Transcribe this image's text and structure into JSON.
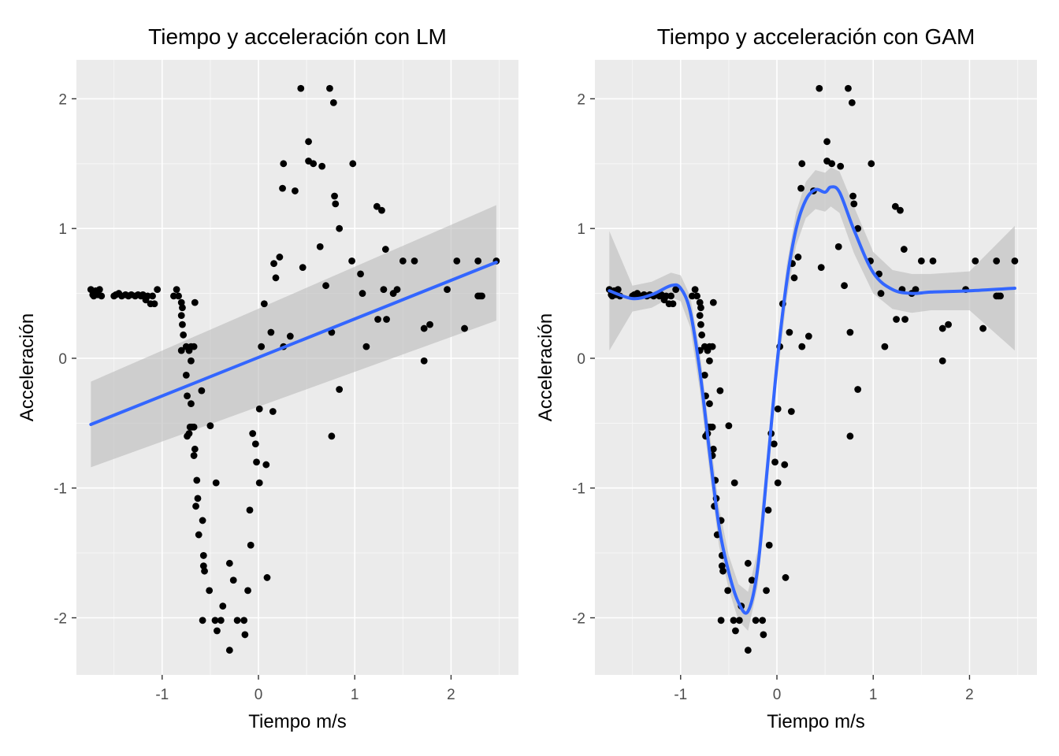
{
  "chart_data": [
    {
      "type": "scatter",
      "title": "Tiempo y acceleración con LM",
      "xlabel": "Tiempo m/s",
      "ylabel": "Acceleración",
      "xlim": [
        -1.89,
        2.7
      ],
      "ylim": [
        -2.44,
        2.3
      ],
      "xticks": [
        -1,
        0,
        1,
        2
      ],
      "yticks": [
        -2,
        -1,
        0,
        1,
        2
      ],
      "tick_labels_x": [
        "-1",
        "0",
        "1",
        "2"
      ],
      "tick_labels_y": [
        "-2",
        "-1",
        "0",
        "1",
        "2"
      ],
      "grid": true,
      "points": [
        {
          "x": -1.74,
          "y": 0.53
        },
        {
          "x": -1.72,
          "y": 0.49
        },
        {
          "x": -1.71,
          "y": 0.48
        },
        {
          "x": -1.69,
          "y": 0.52
        },
        {
          "x": -1.67,
          "y": 0.49
        },
        {
          "x": -1.65,
          "y": 0.53
        },
        {
          "x": -1.63,
          "y": 0.48
        },
        {
          "x": -1.5,
          "y": 0.48
        },
        {
          "x": -1.48,
          "y": 0.49
        },
        {
          "x": -1.45,
          "y": 0.5
        },
        {
          "x": -1.42,
          "y": 0.48
        },
        {
          "x": -1.38,
          "y": 0.49
        },
        {
          "x": -1.35,
          "y": 0.48
        },
        {
          "x": -1.32,
          "y": 0.49
        },
        {
          "x": -1.28,
          "y": 0.48
        },
        {
          "x": -1.25,
          "y": 0.49
        },
        {
          "x": -1.22,
          "y": 0.48
        },
        {
          "x": -1.2,
          "y": 0.49
        },
        {
          "x": -1.17,
          "y": 0.45
        },
        {
          "x": -1.15,
          "y": 0.48
        },
        {
          "x": -1.12,
          "y": 0.42
        },
        {
          "x": -1.1,
          "y": 0.48
        },
        {
          "x": -1.08,
          "y": 0.42
        },
        {
          "x": -1.05,
          "y": 0.53
        },
        {
          "x": -0.88,
          "y": 0.48
        },
        {
          "x": -0.85,
          "y": 0.53
        },
        {
          "x": -0.83,
          "y": 0.48
        },
        {
          "x": -0.8,
          "y": 0.43
        },
        {
          "x": -0.79,
          "y": 0.39
        },
        {
          "x": -0.8,
          "y": 0.33
        },
        {
          "x": -0.79,
          "y": 0.26
        },
        {
          "x": -0.78,
          "y": 0.18
        },
        {
          "x": -0.8,
          "y": 0.06
        },
        {
          "x": -0.75,
          "y": 0.09
        },
        {
          "x": -0.72,
          "y": 0.06
        },
        {
          "x": -0.7,
          "y": 0.09
        },
        {
          "x": -0.67,
          "y": 0.09
        },
        {
          "x": -0.66,
          "y": 0.43
        },
        {
          "x": -0.75,
          "y": -0.13
        },
        {
          "x": -0.7,
          "y": -0.02
        },
        {
          "x": -0.74,
          "y": -0.29
        },
        {
          "x": -0.7,
          "y": -0.35
        },
        {
          "x": -0.59,
          "y": -0.25
        },
        {
          "x": -0.72,
          "y": -0.58
        },
        {
          "x": -0.71,
          "y": -0.53
        },
        {
          "x": -0.74,
          "y": -0.6
        },
        {
          "x": -0.69,
          "y": -0.53
        },
        {
          "x": -0.67,
          "y": -0.53
        },
        {
          "x": -0.66,
          "y": -0.7
        },
        {
          "x": -0.67,
          "y": -0.75
        },
        {
          "x": -0.64,
          "y": -0.94
        },
        {
          "x": -0.63,
          "y": -1.08
        },
        {
          "x": -0.65,
          "y": -1.14
        },
        {
          "x": -0.62,
          "y": -1.36
        },
        {
          "x": -0.58,
          "y": -1.25
        },
        {
          "x": -0.57,
          "y": -1.52
        },
        {
          "x": -0.57,
          "y": -1.6
        },
        {
          "x": -0.56,
          "y": -1.64
        },
        {
          "x": -0.5,
          "y": -0.52
        },
        {
          "x": -0.51,
          "y": -1.79
        },
        {
          "x": -0.58,
          "y": -2.02
        },
        {
          "x": -0.44,
          "y": -0.96
        },
        {
          "x": -0.45,
          "y": -2.02
        },
        {
          "x": -0.39,
          "y": -2.02
        },
        {
          "x": -0.43,
          "y": -2.1
        },
        {
          "x": -0.37,
          "y": -1.91
        },
        {
          "x": -0.3,
          "y": -1.58
        },
        {
          "x": -0.3,
          "y": -2.25
        },
        {
          "x": -0.26,
          "y": -1.71
        },
        {
          "x": -0.22,
          "y": -2.02
        },
        {
          "x": -0.15,
          "y": -2.02
        },
        {
          "x": -0.14,
          "y": -2.13
        },
        {
          "x": -0.11,
          "y": -1.79
        },
        {
          "x": -0.09,
          "y": -1.17
        },
        {
          "x": -0.08,
          "y": -1.44
        },
        {
          "x": -0.06,
          "y": -0.58
        },
        {
          "x": -0.02,
          "y": -0.8
        },
        {
          "x": -0.03,
          "y": -0.66
        },
        {
          "x": 0.01,
          "y": -0.96
        },
        {
          "x": 0.01,
          "y": -0.39
        },
        {
          "x": 0.03,
          "y": 0.09
        },
        {
          "x": 0.06,
          "y": 0.42
        },
        {
          "x": 0.08,
          "y": -0.82
        },
        {
          "x": 0.09,
          "y": -1.69
        },
        {
          "x": 0.13,
          "y": 0.2
        },
        {
          "x": 0.15,
          "y": -0.41
        },
        {
          "x": 0.16,
          "y": 0.73
        },
        {
          "x": 0.18,
          "y": 0.62
        },
        {
          "x": 0.22,
          "y": 0.78
        },
        {
          "x": 0.25,
          "y": 1.31
        },
        {
          "x": 0.26,
          "y": 1.5
        },
        {
          "x": 0.26,
          "y": 0.09
        },
        {
          "x": 0.33,
          "y": 0.17
        },
        {
          "x": 0.38,
          "y": 1.29
        },
        {
          "x": 0.44,
          "y": 2.08
        },
        {
          "x": 0.46,
          "y": 0.7
        },
        {
          "x": 0.52,
          "y": 1.67
        },
        {
          "x": 0.52,
          "y": 1.52
        },
        {
          "x": 0.57,
          "y": 1.5
        },
        {
          "x": 0.64,
          "y": 0.86
        },
        {
          "x": 0.66,
          "y": 1.48
        },
        {
          "x": 0.7,
          "y": 0.56
        },
        {
          "x": 0.74,
          "y": 2.08
        },
        {
          "x": 0.76,
          "y": -0.6
        },
        {
          "x": 0.76,
          "y": 0.2
        },
        {
          "x": 0.78,
          "y": 1.97
        },
        {
          "x": 0.79,
          "y": 1.25
        },
        {
          "x": 0.8,
          "y": 1.19
        },
        {
          "x": 0.84,
          "y": 1.0
        },
        {
          "x": 0.84,
          "y": -0.24
        },
        {
          "x": 0.97,
          "y": 0.75
        },
        {
          "x": 0.98,
          "y": 1.5
        },
        {
          "x": 1.06,
          "y": 0.65
        },
        {
          "x": 1.08,
          "y": 0.5
        },
        {
          "x": 1.12,
          "y": 0.09
        },
        {
          "x": 1.23,
          "y": 1.17
        },
        {
          "x": 1.24,
          "y": 0.3
        },
        {
          "x": 1.28,
          "y": 1.14
        },
        {
          "x": 1.3,
          "y": 0.53
        },
        {
          "x": 1.32,
          "y": 0.84
        },
        {
          "x": 1.33,
          "y": 0.3
        },
        {
          "x": 1.4,
          "y": 0.5
        },
        {
          "x": 1.44,
          "y": 0.53
        },
        {
          "x": 1.5,
          "y": 0.75
        },
        {
          "x": 1.62,
          "y": 0.75
        },
        {
          "x": 1.72,
          "y": -0.02
        },
        {
          "x": 1.72,
          "y": 0.23
        },
        {
          "x": 1.78,
          "y": 0.26
        },
        {
          "x": 1.96,
          "y": 0.53
        },
        {
          "x": 2.06,
          "y": 0.75
        },
        {
          "x": 2.14,
          "y": 0.23
        },
        {
          "x": 2.28,
          "y": 0.75
        },
        {
          "x": 2.28,
          "y": 0.48
        },
        {
          "x": 2.3,
          "y": 0.48
        },
        {
          "x": 2.32,
          "y": 0.48
        },
        {
          "x": 2.47,
          "y": 0.75
        }
      ],
      "fit": {
        "method": "lm",
        "x": [
          -1.74,
          2.47
        ],
        "y": [
          -0.51,
          0.74
        ],
        "ymin": [
          -0.84,
          0.29
        ],
        "ymax": [
          -0.18,
          1.18
        ]
      },
      "colors": {
        "panel": "#ebebeb",
        "grid": "#ffffff",
        "point": "#000000",
        "line": "#3366ff",
        "ribbon": "#bbbbbb"
      }
    },
    {
      "type": "scatter",
      "title": "Tiempo y acceleración con GAM",
      "xlabel": "Tiempo m/s",
      "ylabel": "Acceleración",
      "xlim": [
        -1.89,
        2.7
      ],
      "ylim": [
        -2.44,
        2.3
      ],
      "xticks": [
        -1,
        0,
        1,
        2
      ],
      "yticks": [
        -2,
        -1,
        0,
        1,
        2
      ],
      "tick_labels_x": [
        "-1",
        "0",
        "1",
        "2"
      ],
      "tick_labels_y": [
        "-2",
        "-1",
        "0",
        "1",
        "2"
      ],
      "grid": true,
      "points_same_as": "left panel",
      "fit": {
        "method": "gam",
        "x": [
          -1.74,
          -1.5,
          -1.3,
          -1.1,
          -1.0,
          -0.9,
          -0.8,
          -0.7,
          -0.6,
          -0.5,
          -0.4,
          -0.3,
          -0.2,
          -0.1,
          0.0,
          0.1,
          0.2,
          0.3,
          0.4,
          0.5,
          0.56,
          0.65,
          0.8,
          1.0,
          1.2,
          1.4,
          1.6,
          2.0,
          2.47
        ],
        "y": [
          0.52,
          0.46,
          0.49,
          0.56,
          0.54,
          0.36,
          -0.1,
          -0.72,
          -1.3,
          -1.65,
          -1.88,
          -1.95,
          -1.62,
          -0.85,
          -0.05,
          0.58,
          1.0,
          1.22,
          1.3,
          1.28,
          1.32,
          1.28,
          0.99,
          0.66,
          0.53,
          0.5,
          0.51,
          0.52,
          0.54
        ],
        "ymin": [
          0.06,
          0.36,
          0.39,
          0.47,
          0.44,
          0.24,
          -0.25,
          -0.87,
          -1.45,
          -1.78,
          -2.02,
          -2.1,
          -1.76,
          -0.99,
          -0.18,
          0.45,
          0.87,
          1.08,
          1.15,
          1.13,
          1.17,
          1.12,
          0.81,
          0.5,
          0.38,
          0.35,
          0.37,
          0.37,
          0.06
        ],
        "ymax": [
          0.98,
          0.56,
          0.59,
          0.66,
          0.64,
          0.48,
          0.05,
          -0.57,
          -1.15,
          -1.52,
          -1.74,
          -1.8,
          -1.48,
          -0.71,
          0.08,
          0.71,
          1.13,
          1.36,
          1.45,
          1.43,
          1.47,
          1.44,
          1.17,
          0.82,
          0.68,
          0.65,
          0.65,
          0.67,
          1.02
        ]
      },
      "colors": {
        "panel": "#ebebeb",
        "grid": "#ffffff",
        "point": "#000000",
        "line": "#3366ff",
        "ribbon": "#bbbbbb"
      }
    }
  ]
}
